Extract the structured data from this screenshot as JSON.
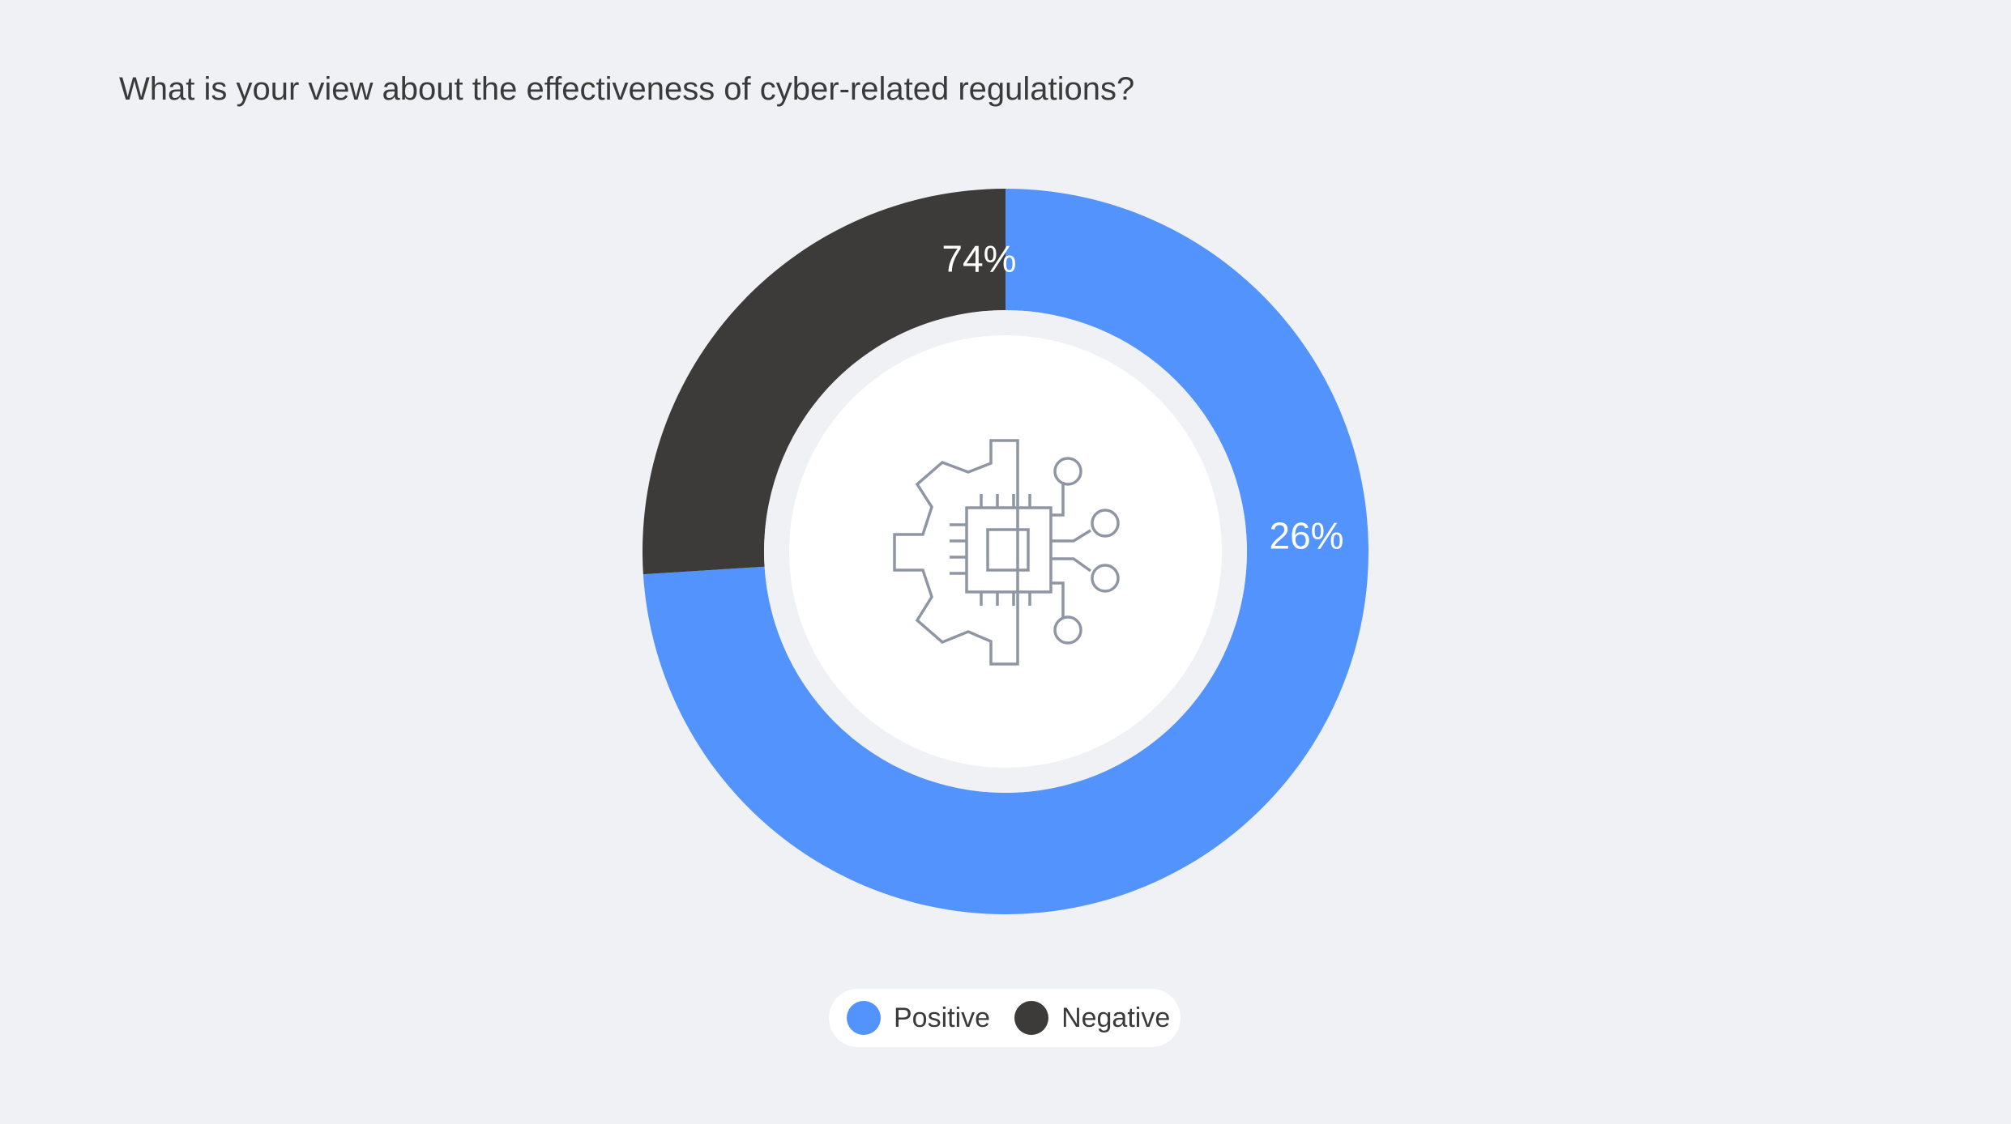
{
  "chart_data": {
    "type": "pie",
    "title": "What is your view about the effectiveness of cyber-related regulations?",
    "categories": [
      "Positive",
      "Negative"
    ],
    "values": [
      74,
      26
    ],
    "data_labels": [
      "74%",
      "26%"
    ],
    "colors": [
      "#5393fe",
      "#3c3b39"
    ],
    "donut": true,
    "legend_position": "bottom-center",
    "center_icon": "chip-gear-icon",
    "label_color": "#ffffff"
  }
}
